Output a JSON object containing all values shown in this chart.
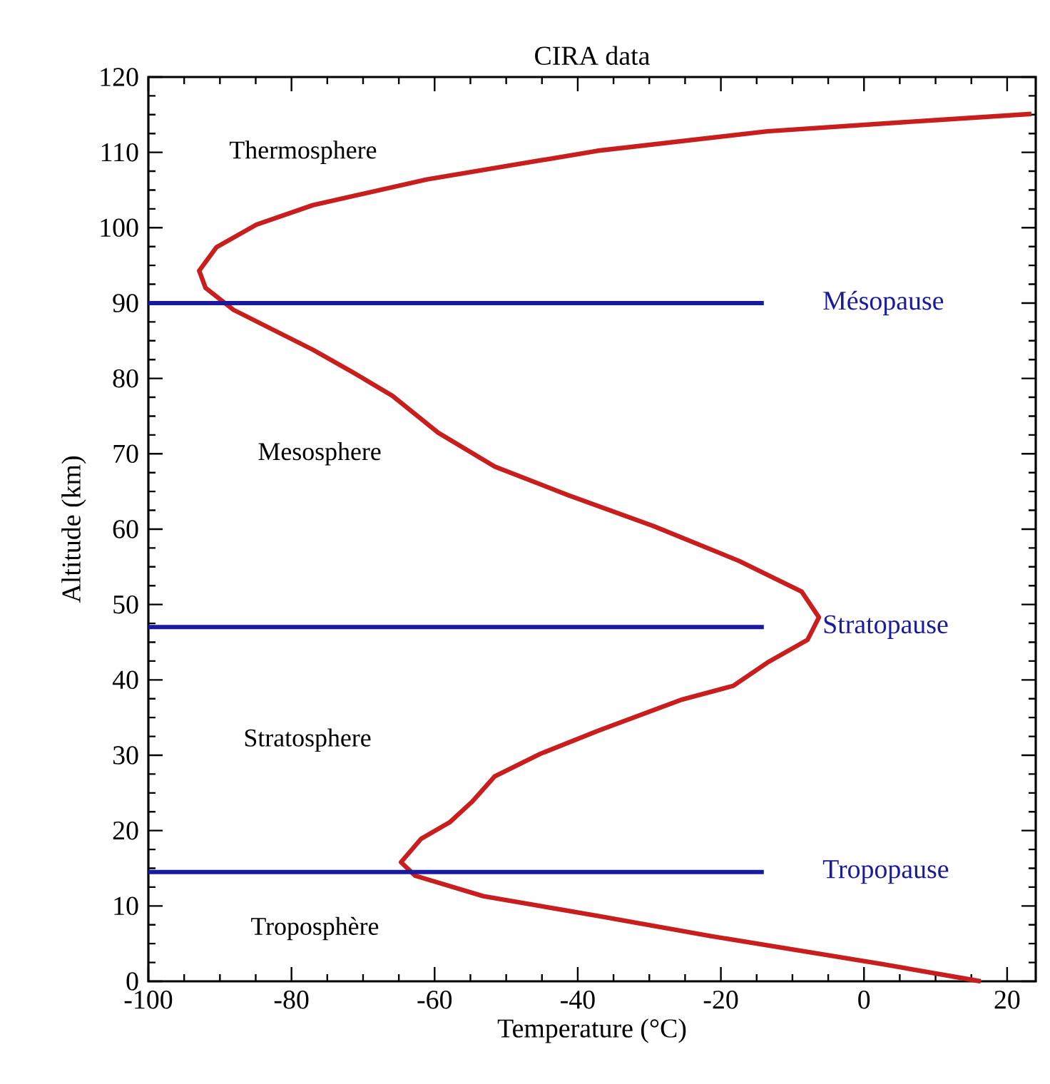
{
  "chart_data": {
    "type": "line",
    "title": "CIRA data",
    "xlabel": "Temperature (°C)",
    "ylabel": "Altitude (km)",
    "xlim": [
      -100,
      24
    ],
    "ylim": [
      0,
      120
    ],
    "xticks": [
      -100,
      -80,
      -60,
      -40,
      -20,
      0,
      20
    ],
    "yticks": [
      0,
      10,
      20,
      30,
      40,
      50,
      60,
      70,
      80,
      90,
      100,
      110,
      120
    ],
    "grid": false,
    "marker": "none",
    "line_style": "solid",
    "annotations": [
      "Thermosphere",
      "Mesosphere",
      "Stratosphere",
      "Troposphère"
    ],
    "series": [
      {
        "color": "#c81e1e",
        "x": [
          16.3,
          2.4,
          -21.4,
          -37.3,
          -53.2,
          -62.7,
          -64.7,
          -61.9,
          -57.9,
          -54.8,
          -51.6,
          -45.2,
          -37.3,
          -25.4,
          -18.3,
          -13.5,
          -7.9,
          -6.3,
          -8.7,
          -17.5,
          -29.4,
          -41.3,
          -51.6,
          -59.5,
          -65.9,
          -71.4,
          -77,
          -88.1,
          -92,
          -92.9,
          -90.5,
          -84.9,
          -77,
          -61.1,
          -37.3,
          -13.5,
          10.3,
          23.4
        ],
        "values": [
          0,
          2.3,
          6,
          8.7,
          11.3,
          14,
          15.8,
          18.9,
          21.1,
          23.8,
          27.2,
          30.2,
          33.2,
          37.4,
          39.2,
          42.3,
          45.3,
          48.3,
          51.7,
          55.8,
          60.4,
          64.5,
          68.3,
          72.8,
          77.7,
          80.8,
          83.8,
          89.1,
          92,
          94.3,
          97.4,
          100.4,
          103,
          106.4,
          110.2,
          112.8,
          114.3,
          115.1
        ]
      },
      {
        "name": "Mésopause",
        "color": "#1a1aa0",
        "x": [
          -100,
          -14
        ],
        "values": [
          90,
          90
        ]
      },
      {
        "name": "Stratopause",
        "color": "#1a1aa0",
        "x": [
          -100,
          -14
        ],
        "values": [
          47,
          47
        ]
      },
      {
        "name": "Tropopause",
        "color": "#1a1aa0",
        "x": [
          -100,
          -14
        ],
        "values": [
          14.5,
          14.5
        ]
      }
    ]
  }
}
